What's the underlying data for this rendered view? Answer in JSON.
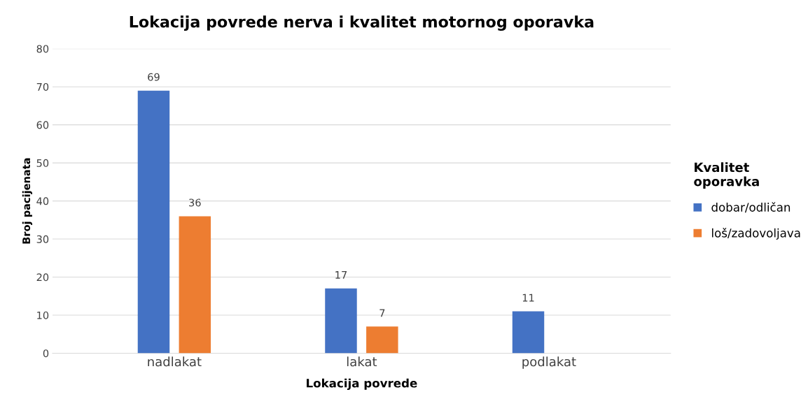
{
  "chart_data": {
    "type": "bar",
    "title": "Lokacija povrede nerva i kvalitet motornog oporavka",
    "xlabel": "Lokacija povrede",
    "ylabel": "Broj pacijenata",
    "legend_title": "Kvalitet oporavka",
    "categories": [
      "nadlakat",
      "lakat",
      "podlakat"
    ],
    "series": [
      {
        "name": "dobar/odličan",
        "color": "#4472c4",
        "values": [
          69,
          17,
          11
        ]
      },
      {
        "name": "loš/zadovoljava",
        "color": "#ed7d31",
        "values": [
          36,
          7,
          null
        ]
      }
    ],
    "ylim": [
      0,
      80
    ],
    "yticks": [
      0,
      10,
      20,
      30,
      40,
      50,
      60,
      70,
      80
    ],
    "grid": "y",
    "legend": "right",
    "data_labels": true
  }
}
